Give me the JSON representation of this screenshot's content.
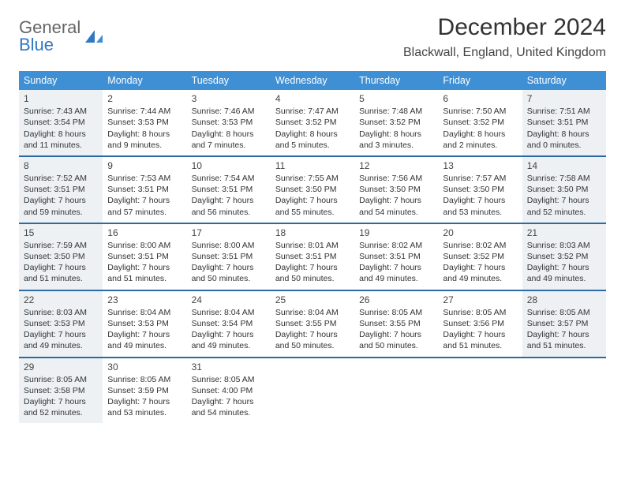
{
  "logo": {
    "word1": "General",
    "word2": "Blue"
  },
  "title": {
    "month": "December 2024",
    "location": "Blackwall, England, United Kingdom"
  },
  "colors": {
    "header_bg": "#3f8fd4",
    "header_text": "#ffffff",
    "week_divider": "#2b6aa4",
    "shaded_cell": "#eef1f3",
    "logo_accent": "#2f79c2"
  },
  "day_headers": [
    "Sunday",
    "Monday",
    "Tuesday",
    "Wednesday",
    "Thursday",
    "Friday",
    "Saturday"
  ],
  "weeks": [
    [
      {
        "num": "1",
        "shaded": true,
        "sunrise": "Sunrise: 7:43 AM",
        "sunset": "Sunset: 3:54 PM",
        "daylight": "Daylight: 8 hours and 11 minutes."
      },
      {
        "num": "2",
        "shaded": false,
        "sunrise": "Sunrise: 7:44 AM",
        "sunset": "Sunset: 3:53 PM",
        "daylight": "Daylight: 8 hours and 9 minutes."
      },
      {
        "num": "3",
        "shaded": false,
        "sunrise": "Sunrise: 7:46 AM",
        "sunset": "Sunset: 3:53 PM",
        "daylight": "Daylight: 8 hours and 7 minutes."
      },
      {
        "num": "4",
        "shaded": false,
        "sunrise": "Sunrise: 7:47 AM",
        "sunset": "Sunset: 3:52 PM",
        "daylight": "Daylight: 8 hours and 5 minutes."
      },
      {
        "num": "5",
        "shaded": false,
        "sunrise": "Sunrise: 7:48 AM",
        "sunset": "Sunset: 3:52 PM",
        "daylight": "Daylight: 8 hours and 3 minutes."
      },
      {
        "num": "6",
        "shaded": false,
        "sunrise": "Sunrise: 7:50 AM",
        "sunset": "Sunset: 3:52 PM",
        "daylight": "Daylight: 8 hours and 2 minutes."
      },
      {
        "num": "7",
        "shaded": true,
        "sunrise": "Sunrise: 7:51 AM",
        "sunset": "Sunset: 3:51 PM",
        "daylight": "Daylight: 8 hours and 0 minutes."
      }
    ],
    [
      {
        "num": "8",
        "shaded": true,
        "sunrise": "Sunrise: 7:52 AM",
        "sunset": "Sunset: 3:51 PM",
        "daylight": "Daylight: 7 hours and 59 minutes."
      },
      {
        "num": "9",
        "shaded": false,
        "sunrise": "Sunrise: 7:53 AM",
        "sunset": "Sunset: 3:51 PM",
        "daylight": "Daylight: 7 hours and 57 minutes."
      },
      {
        "num": "10",
        "shaded": false,
        "sunrise": "Sunrise: 7:54 AM",
        "sunset": "Sunset: 3:51 PM",
        "daylight": "Daylight: 7 hours and 56 minutes."
      },
      {
        "num": "11",
        "shaded": false,
        "sunrise": "Sunrise: 7:55 AM",
        "sunset": "Sunset: 3:50 PM",
        "daylight": "Daylight: 7 hours and 55 minutes."
      },
      {
        "num": "12",
        "shaded": false,
        "sunrise": "Sunrise: 7:56 AM",
        "sunset": "Sunset: 3:50 PM",
        "daylight": "Daylight: 7 hours and 54 minutes."
      },
      {
        "num": "13",
        "shaded": false,
        "sunrise": "Sunrise: 7:57 AM",
        "sunset": "Sunset: 3:50 PM",
        "daylight": "Daylight: 7 hours and 53 minutes."
      },
      {
        "num": "14",
        "shaded": true,
        "sunrise": "Sunrise: 7:58 AM",
        "sunset": "Sunset: 3:50 PM",
        "daylight": "Daylight: 7 hours and 52 minutes."
      }
    ],
    [
      {
        "num": "15",
        "shaded": true,
        "sunrise": "Sunrise: 7:59 AM",
        "sunset": "Sunset: 3:50 PM",
        "daylight": "Daylight: 7 hours and 51 minutes."
      },
      {
        "num": "16",
        "shaded": false,
        "sunrise": "Sunrise: 8:00 AM",
        "sunset": "Sunset: 3:51 PM",
        "daylight": "Daylight: 7 hours and 51 minutes."
      },
      {
        "num": "17",
        "shaded": false,
        "sunrise": "Sunrise: 8:00 AM",
        "sunset": "Sunset: 3:51 PM",
        "daylight": "Daylight: 7 hours and 50 minutes."
      },
      {
        "num": "18",
        "shaded": false,
        "sunrise": "Sunrise: 8:01 AM",
        "sunset": "Sunset: 3:51 PM",
        "daylight": "Daylight: 7 hours and 50 minutes."
      },
      {
        "num": "19",
        "shaded": false,
        "sunrise": "Sunrise: 8:02 AM",
        "sunset": "Sunset: 3:51 PM",
        "daylight": "Daylight: 7 hours and 49 minutes."
      },
      {
        "num": "20",
        "shaded": false,
        "sunrise": "Sunrise: 8:02 AM",
        "sunset": "Sunset: 3:52 PM",
        "daylight": "Daylight: 7 hours and 49 minutes."
      },
      {
        "num": "21",
        "shaded": true,
        "sunrise": "Sunrise: 8:03 AM",
        "sunset": "Sunset: 3:52 PM",
        "daylight": "Daylight: 7 hours and 49 minutes."
      }
    ],
    [
      {
        "num": "22",
        "shaded": true,
        "sunrise": "Sunrise: 8:03 AM",
        "sunset": "Sunset: 3:53 PM",
        "daylight": "Daylight: 7 hours and 49 minutes."
      },
      {
        "num": "23",
        "shaded": false,
        "sunrise": "Sunrise: 8:04 AM",
        "sunset": "Sunset: 3:53 PM",
        "daylight": "Daylight: 7 hours and 49 minutes."
      },
      {
        "num": "24",
        "shaded": false,
        "sunrise": "Sunrise: 8:04 AM",
        "sunset": "Sunset: 3:54 PM",
        "daylight": "Daylight: 7 hours and 49 minutes."
      },
      {
        "num": "25",
        "shaded": false,
        "sunrise": "Sunrise: 8:04 AM",
        "sunset": "Sunset: 3:55 PM",
        "daylight": "Daylight: 7 hours and 50 minutes."
      },
      {
        "num": "26",
        "shaded": false,
        "sunrise": "Sunrise: 8:05 AM",
        "sunset": "Sunset: 3:55 PM",
        "daylight": "Daylight: 7 hours and 50 minutes."
      },
      {
        "num": "27",
        "shaded": false,
        "sunrise": "Sunrise: 8:05 AM",
        "sunset": "Sunset: 3:56 PM",
        "daylight": "Daylight: 7 hours and 51 minutes."
      },
      {
        "num": "28",
        "shaded": true,
        "sunrise": "Sunrise: 8:05 AM",
        "sunset": "Sunset: 3:57 PM",
        "daylight": "Daylight: 7 hours and 51 minutes."
      }
    ],
    [
      {
        "num": "29",
        "shaded": true,
        "sunrise": "Sunrise: 8:05 AM",
        "sunset": "Sunset: 3:58 PM",
        "daylight": "Daylight: 7 hours and 52 minutes."
      },
      {
        "num": "30",
        "shaded": false,
        "sunrise": "Sunrise: 8:05 AM",
        "sunset": "Sunset: 3:59 PM",
        "daylight": "Daylight: 7 hours and 53 minutes."
      },
      {
        "num": "31",
        "shaded": false,
        "sunrise": "Sunrise: 8:05 AM",
        "sunset": "Sunset: 4:00 PM",
        "daylight": "Daylight: 7 hours and 54 minutes."
      },
      {
        "empty": true
      },
      {
        "empty": true
      },
      {
        "empty": true
      },
      {
        "empty": true
      }
    ]
  ]
}
